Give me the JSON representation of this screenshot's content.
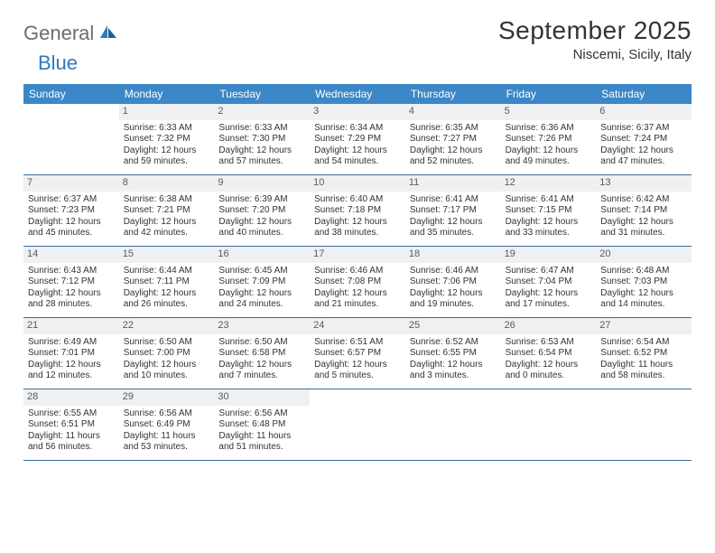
{
  "logo": {
    "part1": "General",
    "part2": "Blue"
  },
  "title": "September 2025",
  "location": "Niscemi, Sicily, Italy",
  "colors": {
    "header_bg": "#3b87c8",
    "header_text": "#ffffff",
    "daynum_bg": "#eef0f2",
    "row_border": "#3b6e9a",
    "logo_gray": "#6d6d6d",
    "logo_blue": "#2e7bbf"
  },
  "weekdays": [
    "Sunday",
    "Monday",
    "Tuesday",
    "Wednesday",
    "Thursday",
    "Friday",
    "Saturday"
  ],
  "weeks": [
    [
      {
        "empty": true
      },
      {
        "day": "1",
        "sunrise": "Sunrise: 6:33 AM",
        "sunset": "Sunset: 7:32 PM",
        "daylight": "Daylight: 12 hours and 59 minutes."
      },
      {
        "day": "2",
        "sunrise": "Sunrise: 6:33 AM",
        "sunset": "Sunset: 7:30 PM",
        "daylight": "Daylight: 12 hours and 57 minutes."
      },
      {
        "day": "3",
        "sunrise": "Sunrise: 6:34 AM",
        "sunset": "Sunset: 7:29 PM",
        "daylight": "Daylight: 12 hours and 54 minutes."
      },
      {
        "day": "4",
        "sunrise": "Sunrise: 6:35 AM",
        "sunset": "Sunset: 7:27 PM",
        "daylight": "Daylight: 12 hours and 52 minutes."
      },
      {
        "day": "5",
        "sunrise": "Sunrise: 6:36 AM",
        "sunset": "Sunset: 7:26 PM",
        "daylight": "Daylight: 12 hours and 49 minutes."
      },
      {
        "day": "6",
        "sunrise": "Sunrise: 6:37 AM",
        "sunset": "Sunset: 7:24 PM",
        "daylight": "Daylight: 12 hours and 47 minutes."
      }
    ],
    [
      {
        "day": "7",
        "sunrise": "Sunrise: 6:37 AM",
        "sunset": "Sunset: 7:23 PM",
        "daylight": "Daylight: 12 hours and 45 minutes."
      },
      {
        "day": "8",
        "sunrise": "Sunrise: 6:38 AM",
        "sunset": "Sunset: 7:21 PM",
        "daylight": "Daylight: 12 hours and 42 minutes."
      },
      {
        "day": "9",
        "sunrise": "Sunrise: 6:39 AM",
        "sunset": "Sunset: 7:20 PM",
        "daylight": "Daylight: 12 hours and 40 minutes."
      },
      {
        "day": "10",
        "sunrise": "Sunrise: 6:40 AM",
        "sunset": "Sunset: 7:18 PM",
        "daylight": "Daylight: 12 hours and 38 minutes."
      },
      {
        "day": "11",
        "sunrise": "Sunrise: 6:41 AM",
        "sunset": "Sunset: 7:17 PM",
        "daylight": "Daylight: 12 hours and 35 minutes."
      },
      {
        "day": "12",
        "sunrise": "Sunrise: 6:41 AM",
        "sunset": "Sunset: 7:15 PM",
        "daylight": "Daylight: 12 hours and 33 minutes."
      },
      {
        "day": "13",
        "sunrise": "Sunrise: 6:42 AM",
        "sunset": "Sunset: 7:14 PM",
        "daylight": "Daylight: 12 hours and 31 minutes."
      }
    ],
    [
      {
        "day": "14",
        "sunrise": "Sunrise: 6:43 AM",
        "sunset": "Sunset: 7:12 PM",
        "daylight": "Daylight: 12 hours and 28 minutes."
      },
      {
        "day": "15",
        "sunrise": "Sunrise: 6:44 AM",
        "sunset": "Sunset: 7:11 PM",
        "daylight": "Daylight: 12 hours and 26 minutes."
      },
      {
        "day": "16",
        "sunrise": "Sunrise: 6:45 AM",
        "sunset": "Sunset: 7:09 PM",
        "daylight": "Daylight: 12 hours and 24 minutes."
      },
      {
        "day": "17",
        "sunrise": "Sunrise: 6:46 AM",
        "sunset": "Sunset: 7:08 PM",
        "daylight": "Daylight: 12 hours and 21 minutes."
      },
      {
        "day": "18",
        "sunrise": "Sunrise: 6:46 AM",
        "sunset": "Sunset: 7:06 PM",
        "daylight": "Daylight: 12 hours and 19 minutes."
      },
      {
        "day": "19",
        "sunrise": "Sunrise: 6:47 AM",
        "sunset": "Sunset: 7:04 PM",
        "daylight": "Daylight: 12 hours and 17 minutes."
      },
      {
        "day": "20",
        "sunrise": "Sunrise: 6:48 AM",
        "sunset": "Sunset: 7:03 PM",
        "daylight": "Daylight: 12 hours and 14 minutes."
      }
    ],
    [
      {
        "day": "21",
        "sunrise": "Sunrise: 6:49 AM",
        "sunset": "Sunset: 7:01 PM",
        "daylight": "Daylight: 12 hours and 12 minutes."
      },
      {
        "day": "22",
        "sunrise": "Sunrise: 6:50 AM",
        "sunset": "Sunset: 7:00 PM",
        "daylight": "Daylight: 12 hours and 10 minutes."
      },
      {
        "day": "23",
        "sunrise": "Sunrise: 6:50 AM",
        "sunset": "Sunset: 6:58 PM",
        "daylight": "Daylight: 12 hours and 7 minutes."
      },
      {
        "day": "24",
        "sunrise": "Sunrise: 6:51 AM",
        "sunset": "Sunset: 6:57 PM",
        "daylight": "Daylight: 12 hours and 5 minutes."
      },
      {
        "day": "25",
        "sunrise": "Sunrise: 6:52 AM",
        "sunset": "Sunset: 6:55 PM",
        "daylight": "Daylight: 12 hours and 3 minutes."
      },
      {
        "day": "26",
        "sunrise": "Sunrise: 6:53 AM",
        "sunset": "Sunset: 6:54 PM",
        "daylight": "Daylight: 12 hours and 0 minutes."
      },
      {
        "day": "27",
        "sunrise": "Sunrise: 6:54 AM",
        "sunset": "Sunset: 6:52 PM",
        "daylight": "Daylight: 11 hours and 58 minutes."
      }
    ],
    [
      {
        "day": "28",
        "sunrise": "Sunrise: 6:55 AM",
        "sunset": "Sunset: 6:51 PM",
        "daylight": "Daylight: 11 hours and 56 minutes."
      },
      {
        "day": "29",
        "sunrise": "Sunrise: 6:56 AM",
        "sunset": "Sunset: 6:49 PM",
        "daylight": "Daylight: 11 hours and 53 minutes."
      },
      {
        "day": "30",
        "sunrise": "Sunrise: 6:56 AM",
        "sunset": "Sunset: 6:48 PM",
        "daylight": "Daylight: 11 hours and 51 minutes."
      },
      {
        "empty": true
      },
      {
        "empty": true
      },
      {
        "empty": true
      },
      {
        "empty": true
      }
    ]
  ]
}
